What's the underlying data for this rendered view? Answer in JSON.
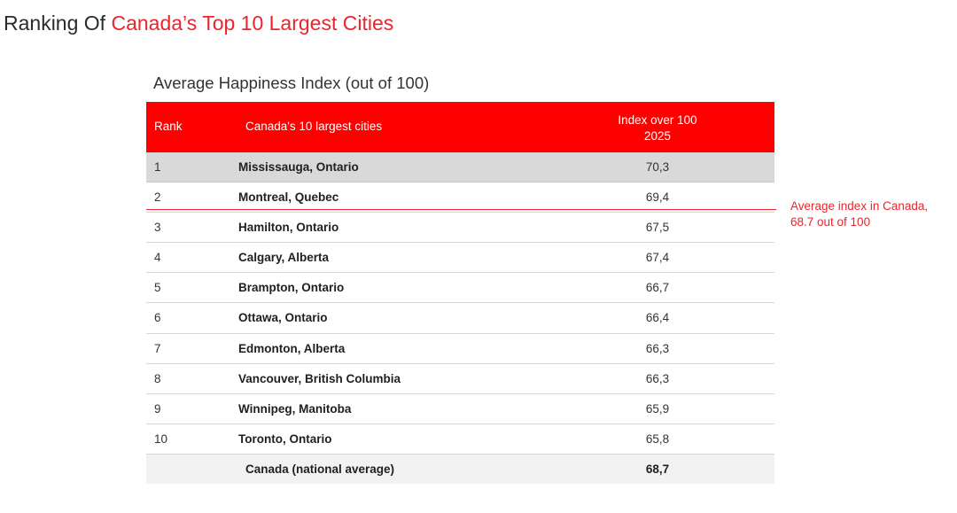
{
  "title": {
    "prefix": "Ranking Of ",
    "highlight": "Canada’s Top 10 Largest Cities"
  },
  "table": {
    "caption": "Average Happiness Index (out of 100)",
    "headers": {
      "rank": "Rank",
      "city": "Canada's 10 largest cities",
      "index_line1": "Index over 100",
      "index_line2": "2025"
    },
    "rows": [
      {
        "rank": "1",
        "city": "Mississauga, Ontario",
        "index": "70,3"
      },
      {
        "rank": "2",
        "city": "Montreal, Quebec",
        "index": "69,4"
      },
      {
        "rank": "3",
        "city": "Hamilton, Ontario",
        "index": "67,5"
      },
      {
        "rank": "4",
        "city": "Calgary, Alberta",
        "index": "67,4"
      },
      {
        "rank": "5",
        "city": "Brampton, Ontario",
        "index": "66,7"
      },
      {
        "rank": "6",
        "city": "Ottawa, Ontario",
        "index": "66,4"
      },
      {
        "rank": "7",
        "city": "Edmonton, Alberta",
        "index": "66,3"
      },
      {
        "rank": "8",
        "city": "Vancouver, British Columbia",
        "index": "66,3"
      },
      {
        "rank": "9",
        "city": "Winnipeg, Manitoba",
        "index": "65,9"
      },
      {
        "rank": "10",
        "city": "Toronto, Ontario",
        "index": "65,8"
      }
    ],
    "total": {
      "label": "Canada (national average)",
      "index": "68,7"
    }
  },
  "annotation": {
    "line1": "Average index in Canada,",
    "line2": "68.7 out of 100"
  },
  "colors": {
    "accent": "#e8262c",
    "header_bg": "#ff0000",
    "highlight_row": "#d9d9d9",
    "total_row": "#f2f2f2"
  }
}
